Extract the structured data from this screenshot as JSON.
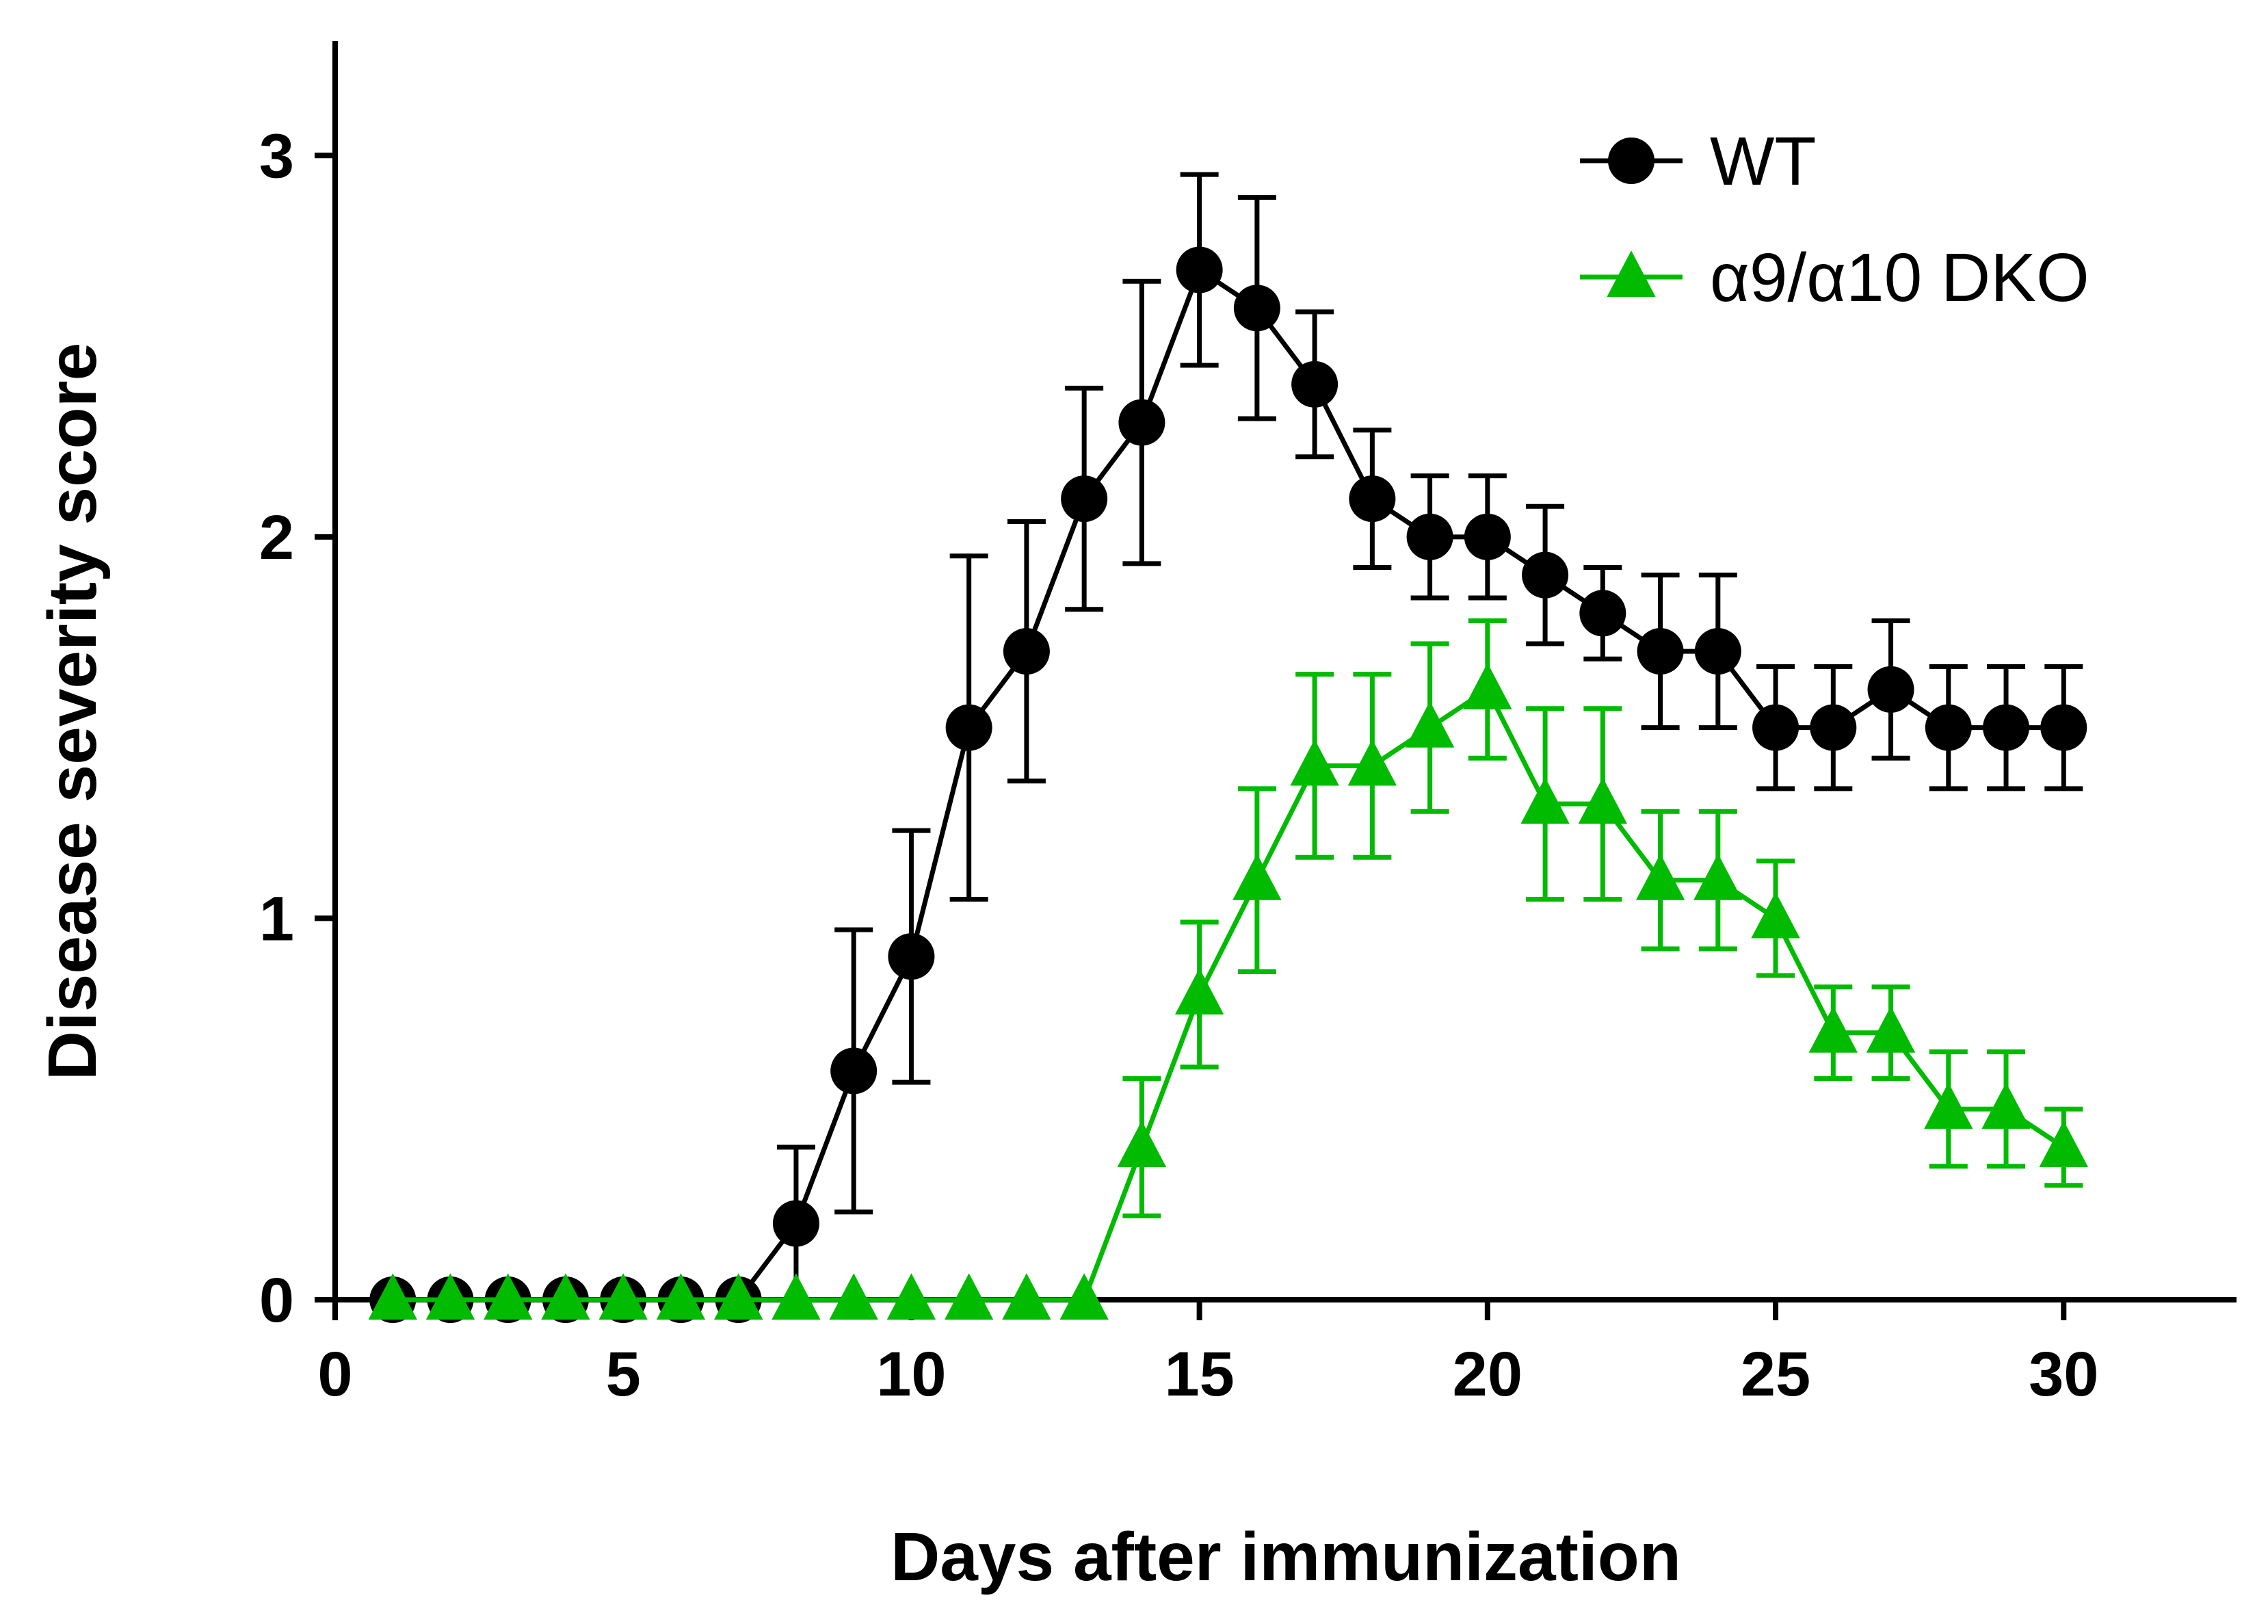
{
  "chart_data": {
    "type": "line",
    "xlabel": "Days after immunization",
    "ylabel": "Disease severity score",
    "xlim": [
      0,
      33
    ],
    "ylim": [
      0,
      3.3
    ],
    "xticks": [
      0,
      5,
      10,
      15,
      20,
      25,
      30
    ],
    "yticks": [
      0,
      1,
      2,
      3
    ],
    "legend_position": "top-right",
    "series": [
      {
        "name": "WT",
        "color": "#000000",
        "marker": "circle",
        "x": [
          1,
          2,
          3,
          4,
          5,
          6,
          7,
          8,
          9,
          10,
          11,
          12,
          13,
          14,
          15,
          16,
          17,
          18,
          19,
          20,
          21,
          22,
          23,
          24,
          25,
          26,
          27,
          28,
          29,
          30
        ],
        "values": [
          0,
          0,
          0,
          0,
          0,
          0,
          0,
          0.2,
          0.6,
          0.9,
          1.5,
          1.7,
          2.1,
          2.3,
          2.7,
          2.6,
          2.4,
          2.1,
          2.0,
          2.0,
          1.9,
          1.8,
          1.7,
          1.7,
          1.5,
          1.5,
          1.6,
          1.5,
          1.5,
          1.5
        ],
        "error": [
          0,
          0,
          0,
          0,
          0,
          0,
          0,
          0.2,
          0.37,
          0.33,
          0.45,
          0.34,
          0.29,
          0.37,
          0.25,
          0.29,
          0.19,
          0.18,
          0.16,
          0.16,
          0.18,
          0.12,
          0.2,
          0.2,
          0.16,
          0.16,
          0.18,
          0.16,
          0.16,
          0.16
        ]
      },
      {
        "name": "α9/α10 DKO",
        "color": "#00bb00",
        "marker": "triangle",
        "x": [
          1,
          2,
          3,
          4,
          5,
          6,
          7,
          8,
          9,
          10,
          11,
          12,
          13,
          14,
          15,
          16,
          17,
          18,
          19,
          20,
          21,
          22,
          23,
          24,
          25,
          26,
          27,
          28,
          29,
          30
        ],
        "values": [
          0,
          0,
          0,
          0,
          0,
          0,
          0,
          0,
          0,
          0,
          0,
          0,
          0,
          0.4,
          0.8,
          1.1,
          1.4,
          1.4,
          1.5,
          1.6,
          1.3,
          1.3,
          1.1,
          1.1,
          1.0,
          0.7,
          0.7,
          0.5,
          0.5,
          0.4
        ],
        "error": [
          0,
          0,
          0,
          0,
          0,
          0,
          0,
          0,
          0,
          0,
          0,
          0,
          0,
          0.18,
          0.19,
          0.24,
          0.24,
          0.24,
          0.22,
          0.18,
          0.25,
          0.25,
          0.18,
          0.18,
          0.15,
          0.12,
          0.12,
          0.15,
          0.15,
          0.1
        ]
      }
    ]
  }
}
